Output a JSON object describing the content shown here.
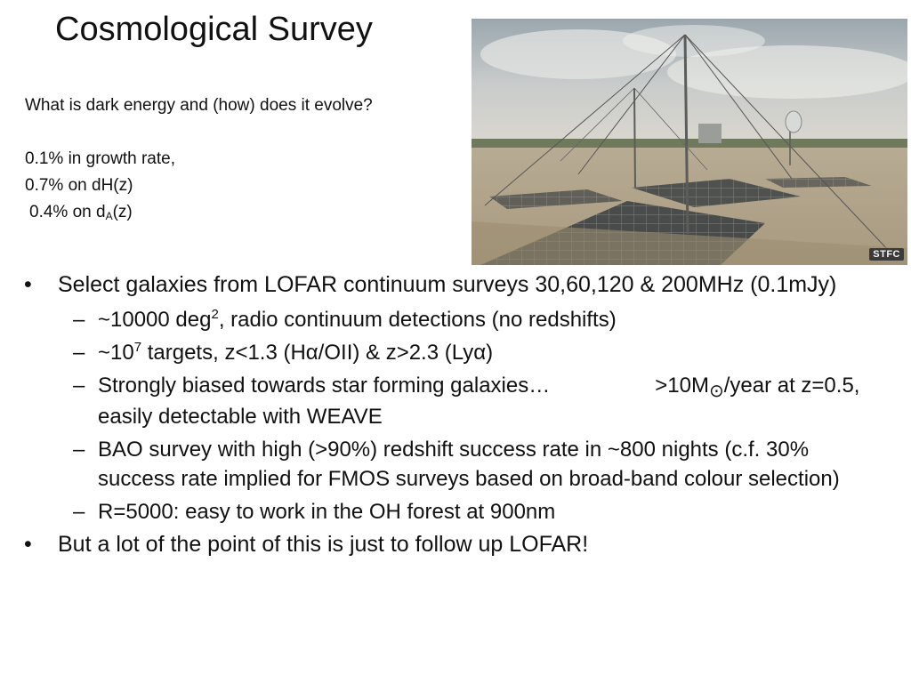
{
  "slide": {
    "title": "Cosmological Survey",
    "question": "What is dark energy and (how) does it evolve?",
    "growth_rate": "0.1% in growth rate,",
    "dh": "0.7% on dH(z)",
    "da_prefix": "0.4% on d",
    "da_sub": "A",
    "da_suffix": "(z)"
  },
  "photo": {
    "credit": "STFC"
  },
  "bullets": {
    "b1": "Select galaxies from LOFAR continuum surveys 30,60,120 & 200MHz (0.1mJy)",
    "s1a_pre": "~10000 deg",
    "s1a_sup": "2",
    "s1a_post": ", radio continuum detections (no redshifts)",
    "s1b_pre": "~10",
    "s1b_sup": "7",
    "s1b_post": " targets, z<1.3 (Hα/OII) & z>2.3 (Lyα)",
    "s1c_pre": "Strongly biased towards star forming galaxies…",
    "s1c_mid": ">10M",
    "s1c_sun": "⊙",
    "s1c_post": "/year at z=0.5, easily detectable with WEAVE",
    "s1d": "BAO survey with high (>90%) redshift success rate in ~800 nights (c.f. 30% success rate implied for FMOS surveys based on broad-band colour selection)",
    "s1e": "R=5000: easy to work in the OH forest at 900nm",
    "b2": "But a lot of the point of this is just to follow up LOFAR!",
    "bullet_symbol": "•",
    "dash_symbol": "–"
  }
}
